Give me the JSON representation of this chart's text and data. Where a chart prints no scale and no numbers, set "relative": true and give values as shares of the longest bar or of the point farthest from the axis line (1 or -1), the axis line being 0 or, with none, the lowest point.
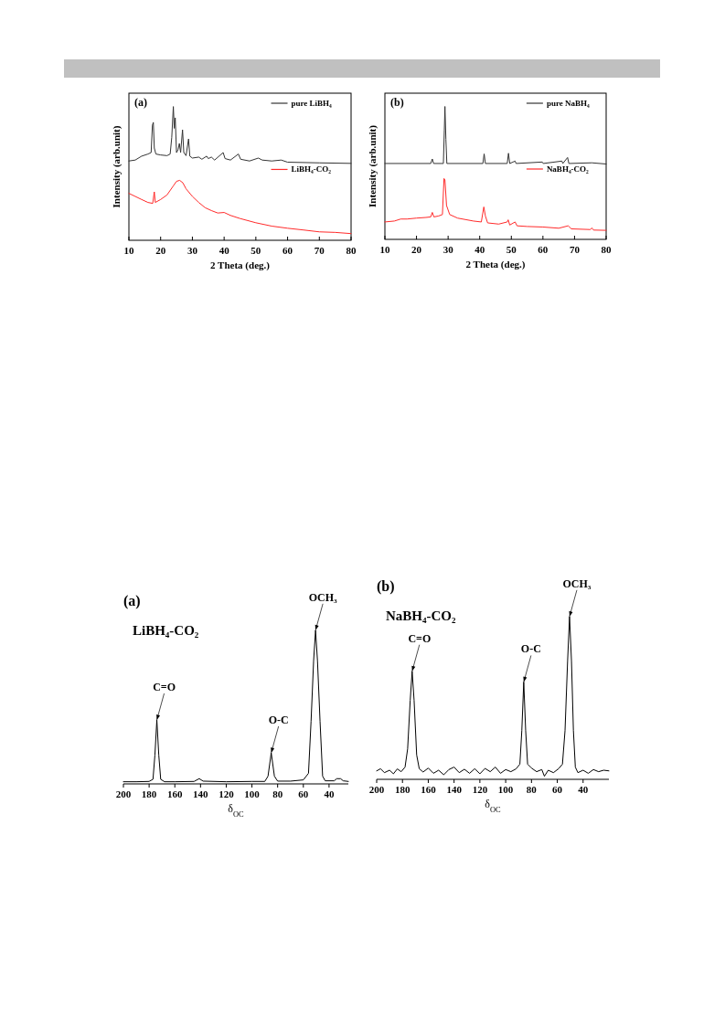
{
  "chart_data": [
    {
      "type": "line",
      "title": "(a)",
      "xlabel": "2 Theta (deg.)",
      "ylabel": "Intensity (arb.unit)",
      "relative": true,
      "xlim": [
        10,
        80
      ],
      "xticks": [
        10,
        20,
        30,
        40,
        50,
        60,
        70,
        80
      ],
      "tick_labels": "x",
      "legend": "right",
      "series": [
        {
          "name": "pure LiBH₄",
          "color": "#333333",
          "x": [
            10,
            12,
            14,
            16,
            17,
            17.4,
            17.7,
            18,
            18.5,
            20,
            22,
            23,
            23.5,
            24,
            24.3,
            24.6,
            25,
            25.5,
            25.9,
            26.3,
            26.9,
            27.3,
            28,
            28.8,
            29.2,
            30,
            32,
            33,
            34.5,
            35,
            36,
            37,
            39.7,
            40.3,
            42,
            44.5,
            45.2,
            48,
            50.8,
            51.5,
            52,
            55,
            58,
            60,
            70,
            80
          ],
          "values": [
            0.593,
            0.6,
            0.629,
            0.645,
            0.656,
            0.86,
            0.882,
            0.69,
            0.645,
            0.638,
            0.633,
            0.645,
            0.769,
            1,
            0.837,
            0.916,
            0.656,
            0.679,
            0.724,
            0.656,
            0.826,
            0.656,
            0.633,
            0.758,
            0.629,
            0.615,
            0.622,
            0.606,
            0.629,
            0.611,
            0.622,
            0.6,
            0.656,
            0.611,
            0.6,
            0.645,
            0.606,
            0.593,
            0.615,
            0.606,
            0.6,
            0.593,
            0.6,
            0.584,
            0.579,
            0.575
          ]
        },
        {
          "name": "LiBH₄-CO₂",
          "color": "#ff2a2a",
          "x": [
            10,
            12,
            14,
            16,
            17.5,
            18,
            18.3,
            20,
            22,
            24,
            25,
            26,
            27,
            28,
            30,
            32,
            34,
            36,
            38,
            40,
            42,
            45,
            50,
            55,
            60,
            65,
            70,
            75,
            80
          ],
          "values": [
            0.351,
            0.328,
            0.305,
            0.283,
            0.276,
            0.362,
            0.283,
            0.305,
            0.339,
            0.407,
            0.441,
            0.448,
            0.43,
            0.385,
            0.328,
            0.283,
            0.244,
            0.222,
            0.204,
            0.208,
            0.186,
            0.163,
            0.131,
            0.106,
            0.09,
            0.077,
            0.063,
            0.059,
            0.05
          ]
        }
      ]
    },
    {
      "type": "line",
      "title": "(b)",
      "xlabel": "2 Theta (deg.)",
      "ylabel": "Intensity (arb.unit)",
      "relative": true,
      "xlim": [
        10,
        80
      ],
      "xticks": [
        10,
        20,
        30,
        40,
        50,
        60,
        70,
        80
      ],
      "tick_labels": "x",
      "legend": "right",
      "series": [
        {
          "name": "pure NaBH₄",
          "color": "#333333",
          "x": [
            10,
            24.5,
            25,
            25.4,
            28.5,
            28.8,
            29,
            29.3,
            29.6,
            41,
            41.4,
            41.8,
            48.7,
            49.1,
            49.5,
            51.2,
            51.5,
            59.8,
            60.1,
            66,
            66.3,
            67.8,
            68.2,
            75.5,
            80
          ],
          "values": [
            0.571,
            0.571,
            0.605,
            0.571,
            0.571,
            0.819,
            1,
            0.752,
            0.571,
            0.571,
            0.643,
            0.571,
            0.571,
            0.648,
            0.571,
            0.589,
            0.571,
            0.582,
            0.571,
            0.589,
            0.571,
            0.616,
            0.571,
            0.576,
            0.567
          ]
        },
        {
          "name": "NaBH₄-CO₂",
          "color": "#ff2a2a",
          "x": [
            10,
            13,
            15,
            17,
            20,
            23,
            24.5,
            25,
            25.5,
            27,
            28.2,
            28.7,
            29,
            29.5,
            30.5,
            33,
            38,
            40.5,
            41.3,
            41.8,
            42.5,
            46,
            48.7,
            49,
            49.5,
            51.2,
            51.8,
            55,
            60,
            65,
            68,
            69,
            75,
            75.5,
            76,
            80
          ],
          "values": [
            0.131,
            0.138,
            0.153,
            0.153,
            0.16,
            0.165,
            0.169,
            0.203,
            0.169,
            0.176,
            0.187,
            0.458,
            0.447,
            0.255,
            0.187,
            0.16,
            0.138,
            0.131,
            0.244,
            0.176,
            0.124,
            0.115,
            0.131,
            0.147,
            0.108,
            0.131,
            0.102,
            0.097,
            0.093,
            0.084,
            0.102,
            0.079,
            0.074,
            0.086,
            0.07,
            0.068
          ]
        }
      ]
    },
    {
      "type": "line",
      "title": "(a)",
      "subtitle": "LiBH₄-CO₂",
      "xlabel": "δ$_{OC}$",
      "relative": true,
      "xlim": [
        200,
        25
      ],
      "xticks": [
        200,
        180,
        160,
        140,
        120,
        100,
        80,
        60,
        40
      ],
      "tick_labels": "x",
      "series": [
        {
          "color": "#000000",
          "x": [
            200,
            190,
            180,
            177,
            175.5,
            174,
            172.5,
            171,
            168,
            160,
            145,
            141,
            138,
            120,
            100,
            90,
            87.5,
            85,
            82.5,
            80,
            70,
            60,
            56,
            54,
            52,
            50.5,
            49,
            47,
            45,
            43,
            36,
            34,
            31,
            29,
            25
          ],
          "values": [
            0.014,
            0.014,
            0.016,
            0.03,
            0.188,
            0.416,
            0.188,
            0.03,
            0.014,
            0.014,
            0.016,
            0.034,
            0.018,
            0.014,
            0.016,
            0.016,
            0.05,
            0.202,
            0.05,
            0.018,
            0.018,
            0.026,
            0.069,
            0.406,
            0.802,
            1,
            0.802,
            0.406,
            0.05,
            0.02,
            0.02,
            0.034,
            0.034,
            0.02,
            0.016
          ]
        }
      ],
      "annotations": [
        {
          "text": "C=O",
          "x": 174,
          "y": 0.416
        },
        {
          "text": "O-C",
          "x": 85,
          "y": 0.202
        },
        {
          "text": "OCH₃",
          "x": 50.5,
          "y": 1
        }
      ]
    },
    {
      "type": "line",
      "title": "(b)",
      "subtitle": "NaBH₄-CO₂",
      "xlabel": "δ$_{OC}$",
      "relative": true,
      "xlim": [
        200,
        20
      ],
      "xticks": [
        200,
        180,
        160,
        140,
        120,
        100,
        80,
        60,
        40
      ],
      "tick_labels": "x",
      "series": [
        {
          "color": "#000000",
          "x": [
            200,
            197,
            194,
            190,
            187,
            184,
            181,
            178,
            176,
            174,
            172.5,
            171,
            169,
            167,
            164,
            160,
            156,
            152,
            148,
            144,
            140,
            136,
            132,
            128,
            124,
            120,
            116,
            112,
            108,
            104,
            100,
            96,
            92,
            89,
            87.5,
            86,
            84.5,
            83,
            80,
            76,
            72,
            70,
            67,
            63,
            59,
            56,
            54,
            52,
            50.5,
            49,
            47.5,
            46,
            44,
            40,
            36,
            32,
            28,
            24,
            20
          ],
          "values": [
            0.052,
            0.065,
            0.041,
            0.056,
            0.034,
            0.064,
            0.047,
            0.075,
            0.187,
            0.486,
            0.664,
            0.486,
            0.15,
            0.065,
            0.045,
            0.069,
            0.037,
            0.056,
            0.028,
            0.06,
            0.075,
            0.041,
            0.062,
            0.037,
            0.065,
            0.034,
            0.067,
            0.047,
            0.075,
            0.037,
            0.06,
            0.047,
            0.064,
            0.093,
            0.299,
            0.598,
            0.299,
            0.093,
            0.069,
            0.047,
            0.06,
            0.019,
            0.056,
            0.041,
            0.065,
            0.093,
            0.299,
            0.729,
            1,
            0.729,
            0.299,
            0.075,
            0.041,
            0.056,
            0.037,
            0.06,
            0.047,
            0.056,
            0.052
          ]
        }
      ],
      "annotations": [
        {
          "text": "C=O",
          "x": 172.5,
          "y": 0.664
        },
        {
          "text": "O-C",
          "x": 86,
          "y": 0.598
        },
        {
          "text": "OCH₃",
          "x": 50.5,
          "y": 1
        }
      ]
    }
  ]
}
